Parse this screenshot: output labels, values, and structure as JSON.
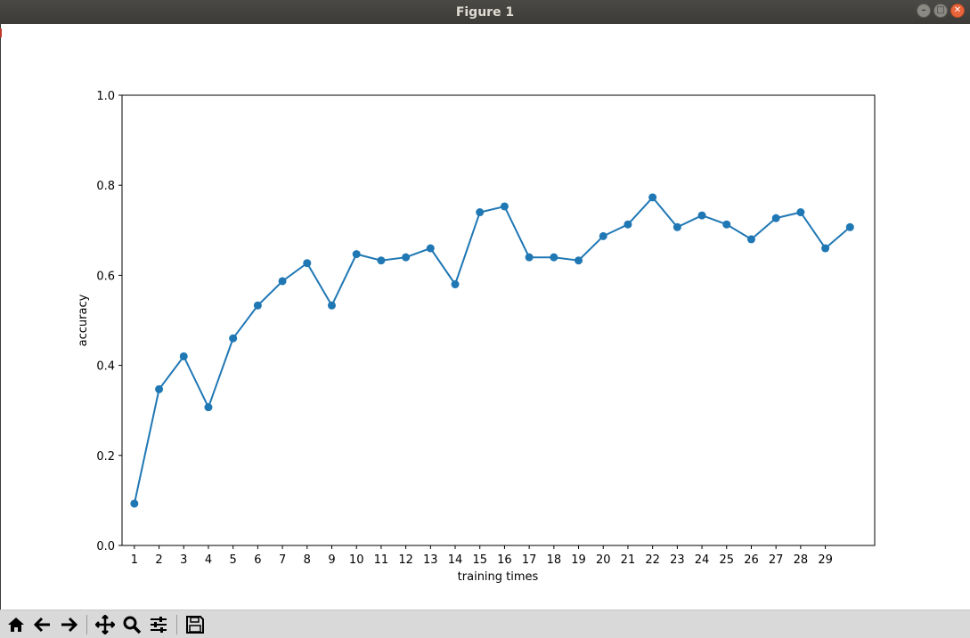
{
  "window": {
    "title": "Figure 1"
  },
  "toolbar": {
    "buttons": [
      {
        "name": "home-button",
        "icon": "home-icon"
      },
      {
        "name": "back-button",
        "icon": "arrow-left-icon"
      },
      {
        "name": "forward-button",
        "icon": "arrow-right-icon"
      },
      {
        "name": "pan-button",
        "icon": "move-icon"
      },
      {
        "name": "zoom-button",
        "icon": "magnifier-icon"
      },
      {
        "name": "subplots-button",
        "icon": "sliders-icon"
      },
      {
        "name": "save-button",
        "icon": "floppy-disk-icon"
      }
    ]
  },
  "chart_data": {
    "type": "line",
    "title": "",
    "xlabel": "training times",
    "ylabel": "accuracy",
    "ylim": [
      0,
      1.0
    ],
    "xlim": [
      0.5,
      31
    ],
    "y_ticks": [
      "0.0",
      "0.2",
      "0.4",
      "0.6",
      "0.8",
      "1.0"
    ],
    "x_ticks": [
      "1",
      "2",
      "3",
      "4",
      "5",
      "6",
      "7",
      "8",
      "9",
      "10",
      "11",
      "12",
      "13",
      "14",
      "15",
      "16",
      "17",
      "18",
      "19",
      "20",
      "21",
      "22",
      "23",
      "24",
      "25",
      "26",
      "27",
      "28",
      "29"
    ],
    "markers": true,
    "grid": false,
    "color": "#1f77b4",
    "series": [
      {
        "x": [
          1,
          2,
          3,
          4,
          5,
          6,
          7,
          8,
          9,
          10,
          11,
          12,
          13,
          14,
          15,
          16,
          17,
          18,
          19,
          20,
          21,
          22,
          23,
          24,
          25,
          26,
          27,
          28,
          29,
          30
        ],
        "values": [
          0.093,
          0.347,
          0.42,
          0.307,
          0.46,
          0.533,
          0.587,
          0.627,
          0.533,
          0.647,
          0.633,
          0.64,
          0.66,
          0.58,
          0.74,
          0.753,
          0.64,
          0.64,
          0.633,
          0.687,
          0.713,
          0.773,
          0.707,
          0.733,
          0.713,
          0.68,
          0.727,
          0.74,
          0.66,
          0.707
        ]
      }
    ]
  }
}
